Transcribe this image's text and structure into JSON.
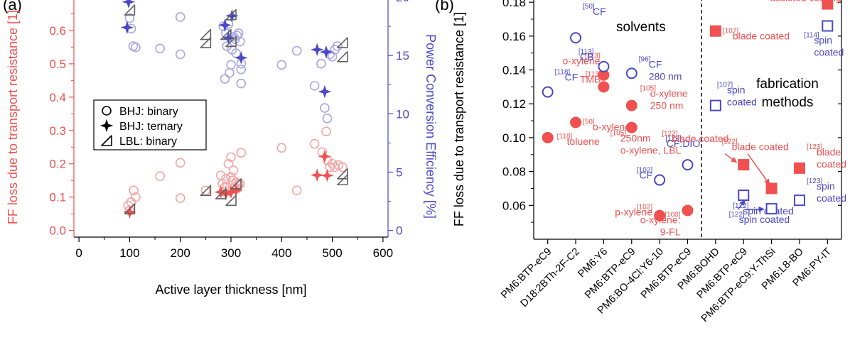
{
  "colors": {
    "red": "#f0504f",
    "red_light": "#f4a6a6",
    "blue": "#4a48c8",
    "blue_light": "#a8a6e4",
    "gray": "#606060",
    "axis": "#000000",
    "dash": "#000000"
  },
  "chart_data": [
    {
      "panel_label": "(a)",
      "type": "scatter",
      "xlabel": "Active layer thickness [nm]",
      "ylabel_left": "FF loss due to transport resistance [1]",
      "ylabel_right": "Power Conversion Efficiency [%]",
      "xlim": [
        -10,
        610
      ],
      "ylim_left": [
        -0.02,
        0.7
      ],
      "ylim_right": [
        -0.571,
        20
      ],
      "xticks": [
        0,
        100,
        200,
        300,
        400,
        500,
        600
      ],
      "xtick_labels": [
        "0",
        "100",
        "200",
        "300",
        "400",
        "500",
        "600"
      ],
      "yticks_left": [
        0.0,
        0.1,
        0.2,
        0.3,
        0.4,
        0.5,
        0.6
      ],
      "ytick_labels_left": [
        "0.0",
        "0.1",
        "0.2",
        "0.3",
        "0.4",
        "0.5",
        "0.6"
      ],
      "yticks_right": [
        0,
        5,
        10,
        15,
        20
      ],
      "ytick_labels_right": [
        "0",
        "5",
        "10",
        "15",
        "20"
      ],
      "legend": {
        "placement": "center-left",
        "entries": [
          {
            "marker": "circle",
            "label": "BHJ: binary"
          },
          {
            "marker": "star",
            "label": "BHJ: ternary"
          },
          {
            "marker": "triangle",
            "label": "LBL: binary"
          }
        ]
      },
      "series": [
        {
          "marker": "circle",
          "axis": "left",
          "points": [
            [
              97,
              0.075
            ],
            [
              100,
              0.06
            ],
            [
              103,
              0.085
            ],
            [
              108,
              0.12
            ],
            [
              112,
              0.1
            ],
            [
              160,
              0.163
            ],
            [
              200,
              0.203
            ],
            [
              200,
              0.097
            ],
            [
              250,
              0.12
            ],
            [
              280,
              0.165
            ],
            [
              283,
              0.14
            ],
            [
              285,
              0.117
            ],
            [
              288,
              0.13
            ],
            [
              290,
              0.155
            ],
            [
              292,
              0.13
            ],
            [
              295,
              0.2
            ],
            [
              297,
              0.118
            ],
            [
              300,
              0.22
            ],
            [
              300,
              0.16
            ],
            [
              303,
              0.15
            ],
            [
              305,
              0.18
            ],
            [
              307,
              0.13
            ],
            [
              310,
              0.145
            ],
            [
              312,
              0.125
            ],
            [
              315,
              0.14
            ],
            [
              318,
              0.14
            ],
            [
              320,
              0.233
            ],
            [
              400,
              0.248
            ],
            [
              430,
              0.12
            ],
            [
              465,
              0.26
            ],
            [
              480,
              0.235
            ],
            [
              488,
              0.297
            ],
            [
              490,
              0.21
            ],
            [
              495,
              0.19
            ],
            [
              500,
              0.2
            ],
            [
              505,
              0.19
            ],
            [
              512,
              0.196
            ],
            [
              520,
              0.19
            ]
          ]
        },
        {
          "marker": "circle",
          "axis": "right",
          "points": [
            [
              100,
              18.2
            ],
            [
              103,
              17.3
            ],
            [
              107,
              15.8
            ],
            [
              112,
              15.7
            ],
            [
              160,
              15.6
            ],
            [
              200,
              18.3
            ],
            [
              200,
              15.1
            ],
            [
              285,
              17.5
            ],
            [
              288,
              13.0
            ],
            [
              290,
              16.9
            ],
            [
              292,
              15.8
            ],
            [
              295,
              17.7
            ],
            [
              297,
              13.5
            ],
            [
              300,
              14.2
            ],
            [
              302,
              15.5
            ],
            [
              305,
              16.6
            ],
            [
              308,
              16.4
            ],
            [
              310,
              15.2
            ],
            [
              312,
              16.7
            ],
            [
              315,
              16.9
            ],
            [
              318,
              16.2
            ],
            [
              320,
              14.3
            ],
            [
              320,
              13.8
            ],
            [
              320,
              12.6
            ],
            [
              400,
              14.2
            ],
            [
              430,
              15.4
            ],
            [
              465,
              12.4
            ],
            [
              478,
              14.3
            ],
            [
              485,
              10.5
            ],
            [
              490,
              9.6
            ],
            [
              495,
              15.1
            ],
            [
              500,
              14.9
            ],
            [
              505,
              15.5
            ],
            [
              510,
              15.8
            ]
          ]
        },
        {
          "marker": "star",
          "axis": "left",
          "points": [
            [
              100,
              0.055
            ],
            [
              280,
              0.115
            ],
            [
              290,
              0.11
            ],
            [
              300,
              0.115
            ],
            [
              310,
              0.12
            ],
            [
              470,
              0.166
            ],
            [
              485,
              0.222
            ],
            [
              490,
              0.165
            ]
          ]
        },
        {
          "marker": "star",
          "axis": "right",
          "points": [
            [
              95,
              17.4
            ],
            [
              98,
              19.6
            ],
            [
              288,
              17.6
            ],
            [
              295,
              16.5
            ],
            [
              302,
              18.4
            ],
            [
              320,
              14.8
            ],
            [
              470,
              15.5
            ],
            [
              485,
              11.9
            ],
            [
              488,
              15.3
            ]
          ]
        },
        {
          "marker": "triangle",
          "axis": "left",
          "points": [
            [
              100,
              0.065
            ],
            [
              250,
              0.12
            ],
            [
              280,
              0.11
            ],
            [
              300,
              0.09
            ],
            [
              310,
              0.14
            ],
            [
              520,
              0.17
            ],
            [
              520,
              0.152
            ]
          ]
        },
        {
          "marker": "triangle",
          "axis": "right",
          "points": [
            [
              100,
              18.9
            ],
            [
              250,
              16.8
            ],
            [
              250,
              16.1
            ],
            [
              290,
              16.8
            ],
            [
              300,
              18.5
            ],
            [
              300,
              16.2
            ],
            [
              520,
              16.1
            ],
            [
              520,
              14.9
            ]
          ]
        }
      ]
    },
    {
      "panel_label": "(b)",
      "type": "scatter",
      "ylabel": "FF loss due to transport resistance [1]",
      "ylim": [
        0.04,
        0.183
      ],
      "yticks": [
        0.06,
        0.08,
        0.1,
        0.12,
        0.14,
        0.16,
        0.18
      ],
      "ytick_labels": [
        "0.06",
        "0.08",
        "0.10",
        "0.12",
        "0.14",
        "0.16",
        "0.18"
      ],
      "categories": [
        "PM6:BTP-eC9",
        "D18:2BTh-2F-C2",
        "PM6:Y6",
        "PM6:BTP-eC9",
        "PM6:BO-4Cl:Y6-10",
        "PM6:BTP-eC9",
        "PM6:BOHD",
        "PM6:BTP-eC9",
        "PM6:BTP-eC9:Y-ThSi",
        "PM6:L8-BO",
        "PM6:PY-IT"
      ],
      "section_labels": {
        "solvents": "solvents",
        "fabrication": "fabrication\nmethods"
      },
      "points": [
        {
          "x": 0,
          "y": 0.1,
          "marker": "filled-circle",
          "ref": "[118]",
          "text": "toluene"
        },
        {
          "x": 0,
          "y": 0.127,
          "marker": "open-circle",
          "ref": "[118]",
          "text": "CF"
        },
        {
          "x": 1,
          "y": 0.109,
          "marker": "filled-circle",
          "ref": "[50]",
          "text": "o-xylene"
        },
        {
          "x": 1,
          "y": 0.159,
          "marker": "open-circle",
          "ref": "[50]",
          "text": "CF"
        },
        {
          "x": 2,
          "y": 0.137,
          "marker": "filled-circle",
          "ref": "[113]",
          "text": "o-xylene"
        },
        {
          "x": 2,
          "y": 0.13,
          "marker": "filled-circle",
          "ref": "[113]",
          "text": "TMB"
        },
        {
          "x": 2,
          "y": 0.142,
          "marker": "open-circle",
          "ref": "[113]",
          "text": "CB"
        },
        {
          "x": 3,
          "y": 0.119,
          "marker": "filled-circle",
          "ref": "[105]",
          "text": "o-xylene\n250 nm"
        },
        {
          "x": 3,
          "y": 0.106,
          "marker": "filled-circle",
          "ref": "[105]",
          "text": "250nm\no-xylene, LBL"
        },
        {
          "x": 3,
          "y": 0.138,
          "marker": "open-circle",
          "ref": "[96]",
          "text": "CF\n280 nm"
        },
        {
          "x": 4,
          "y": 0.054,
          "marker": "filled-circle",
          "ref": "[102]",
          "text": "p-xylene"
        },
        {
          "x": 4,
          "y": 0.075,
          "marker": "open-circle",
          "ref": "[102]",
          "text": "CF"
        },
        {
          "x": 5,
          "y": 0.057,
          "marker": "filled-circle",
          "ref": "[100]",
          "text": "o-xylene:\n9-FL"
        },
        {
          "x": 5,
          "y": 0.084,
          "marker": "open-circle",
          "ref": "[122]",
          "text": "CF:DIO"
        },
        {
          "x": 6,
          "y": 0.163,
          "marker": "filled-square",
          "ref": "[107]",
          "text": "blade coated"
        },
        {
          "x": 6,
          "y": 0.119,
          "marker": "open-square",
          "ref": "[107]",
          "text": "spin\ncoated"
        },
        {
          "x": 7,
          "y": 0.084,
          "marker": "filled-square",
          "ref": "[122]",
          "text": "blade coated"
        },
        {
          "x": 7,
          "y": 0.066,
          "marker": "open-square",
          "ref": "[122]",
          "text": "spin coated"
        },
        {
          "x": 8,
          "y": 0.07,
          "marker": "filled-square",
          "ref": "[122]",
          "text": "blade coated"
        },
        {
          "x": 8,
          "y": 0.058,
          "marker": "open-square",
          "ref": "[122]",
          "text": "spin coated"
        },
        {
          "x": 9,
          "y": 0.082,
          "marker": "filled-square",
          "ref": "[123]",
          "text": "blade\ncoated"
        },
        {
          "x": 9,
          "y": 0.063,
          "marker": "open-square",
          "ref": "[123]",
          "text": "spin\ncoated"
        },
        {
          "x": 10,
          "y": 0.179,
          "marker": "filled-square",
          "ref": "[114]",
          "text": "meniscus-\nassisted coating"
        },
        {
          "x": 10,
          "y": 0.166,
          "marker": "open-square",
          "ref": "[114]",
          "text": "spin\ncoated"
        }
      ]
    }
  ]
}
